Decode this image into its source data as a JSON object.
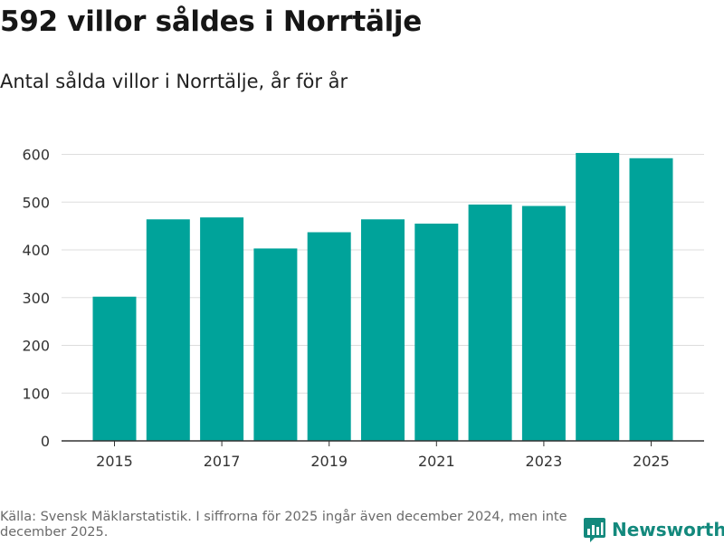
{
  "header": {
    "title": "592 villor såldes i Norrtälje",
    "subtitle": "Antal sålda villor i Norrtälje, år för år"
  },
  "footer": {
    "source": "Källa: Svensk Mäklarstatistik. I siffrorna för 2025 ingår även december 2024, men inte december 2025.",
    "brand": "Newsworthy"
  },
  "colors": {
    "bar": "#00a39a",
    "grid": "#dddddd",
    "axis": "#333333",
    "brand": "#13897d"
  },
  "chart_data": {
    "type": "bar",
    "title": "592 villor såldes i Norrtälje",
    "subtitle": "Antal sålda villor i Norrtälje, år för år",
    "xlabel": "",
    "ylabel": "",
    "categories": [
      2015,
      2016,
      2017,
      2018,
      2019,
      2020,
      2021,
      2022,
      2023,
      2024,
      2025
    ],
    "values": [
      302,
      464,
      468,
      403,
      437,
      464,
      455,
      495,
      492,
      603,
      592
    ],
    "x_tick_labels": [
      "2015",
      "2017",
      "2019",
      "2021",
      "2023",
      "2025"
    ],
    "y_ticks": [
      0,
      100,
      200,
      300,
      400,
      500,
      600
    ],
    "ylim": [
      0,
      620
    ],
    "grid": true,
    "legend": "none"
  }
}
